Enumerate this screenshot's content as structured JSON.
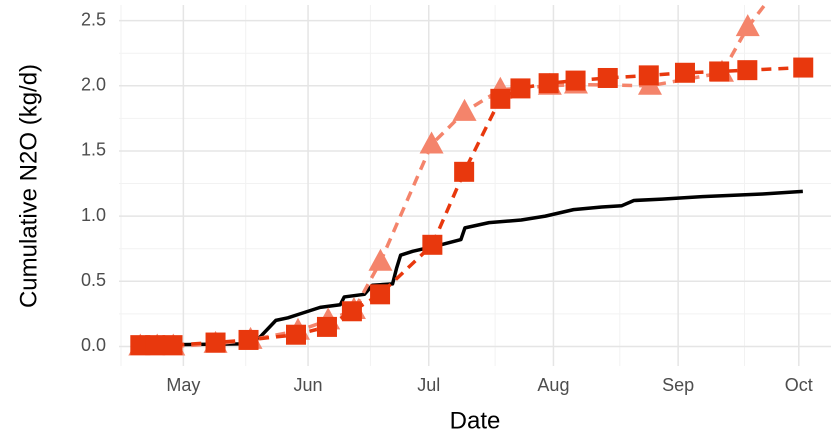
{
  "chart_data": {
    "type": "line",
    "x_label": "Date",
    "y_label": "Cumulative N2O (kg/d)",
    "xlim": [
      -16,
      161
    ],
    "ylim": [
      -0.15,
      2.62
    ],
    "xticks": [
      {
        "value": 0,
        "label": "May"
      },
      {
        "value": 31,
        "label": "Jun"
      },
      {
        "value": 61,
        "label": "Jul"
      },
      {
        "value": 92,
        "label": "Aug"
      },
      {
        "value": 123,
        "label": "Sep"
      },
      {
        "value": 153,
        "label": "Oct"
      }
    ],
    "yticks": [
      {
        "value": 0,
        "label": "0.0"
      },
      0.5,
      {
        "value": 1,
        "label": "1.0"
      },
      1.5,
      {
        "value": 2,
        "label": "2.0"
      },
      2.5
    ],
    "grid": true,
    "series": [
      {
        "color": "#000000",
        "linestyle": "solid",
        "marker": null,
        "x": [
          -10.7,
          14,
          16,
          19,
          23,
          26,
          29,
          34,
          39,
          40,
          45,
          47,
          52,
          53,
          54,
          57,
          64,
          69,
          70,
          76,
          84,
          90,
          97,
          104,
          109,
          112,
          119,
          129,
          144,
          154
        ],
        "values": [
          0.01,
          0.02,
          0.03,
          0.07,
          0.2,
          0.22,
          0.25,
          0.3,
          0.32,
          0.38,
          0.4,
          0.47,
          0.48,
          0.6,
          0.7,
          0.73,
          0.78,
          0.82,
          0.91,
          0.95,
          0.97,
          1.0,
          1.05,
          1.07,
          1.08,
          1.12,
          1.13,
          1.15,
          1.17,
          1.19
        ]
      },
      {
        "color": "#f4846b",
        "linestyle": "dashed",
        "marker": "triangle",
        "x": [
          -10.7,
          -6.5,
          -2.5,
          8,
          16.7,
          28.5,
          36,
          42.4,
          49,
          61.7,
          69.9,
          78.8,
          91.1,
          97.6,
          116,
          133.9,
          140.3,
          146.5
        ],
        "values": [
          0.0,
          0.0,
          0.0,
          0.02,
          0.05,
          0.12,
          0.2,
          0.28,
          0.65,
          1.55,
          1.8,
          1.97,
          2.0,
          2.01,
          2.0,
          2.1,
          2.45,
          2.7
        ]
      },
      {
        "color": "#e8380d",
        "linestyle": "dashed",
        "marker": "square",
        "x": [
          -10.7,
          -7,
          -2.7,
          8,
          16.2,
          28,
          35.7,
          41.9,
          48.9,
          61.9,
          69.8,
          78.8,
          83.8,
          90.8,
          97.5,
          105.5,
          115.7,
          124.7,
          133.2,
          140.2,
          154.1
        ],
        "values": [
          0.01,
          0.01,
          0.01,
          0.03,
          0.05,
          0.09,
          0.15,
          0.27,
          0.4,
          0.78,
          1.34,
          1.9,
          1.98,
          2.02,
          2.04,
          2.06,
          2.08,
          2.1,
          2.11,
          2.12,
          2.14
        ]
      }
    ]
  }
}
